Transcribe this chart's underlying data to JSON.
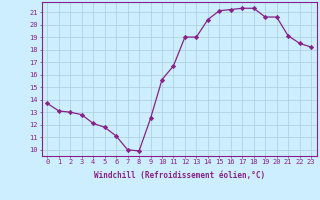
{
  "x": [
    0,
    1,
    2,
    3,
    4,
    5,
    6,
    7,
    8,
    9,
    10,
    11,
    12,
    13,
    14,
    15,
    16,
    17,
    18,
    19,
    20,
    21,
    22,
    23
  ],
  "y": [
    13.7,
    13.1,
    13.0,
    12.8,
    12.1,
    11.8,
    11.1,
    10.0,
    9.9,
    12.5,
    15.6,
    16.7,
    19.0,
    19.0,
    20.4,
    21.1,
    21.2,
    21.3,
    21.3,
    20.6,
    20.6,
    19.1,
    18.5,
    18.2
  ],
  "line_color": "#882288",
  "marker": "D",
  "marker_size": 2.2,
  "bg_color": "#cceeff",
  "grid_color": "#aaccdd",
  "xlabel": "Windchill (Refroidissement éolien,°C)",
  "xlabel_color": "#882288",
  "tick_color": "#882288",
  "ylim": [
    9.5,
    21.8
  ],
  "yticks": [
    10,
    11,
    12,
    13,
    14,
    15,
    16,
    17,
    18,
    19,
    20,
    21
  ],
  "xlim": [
    -0.5,
    23.5
  ],
  "xticks": [
    0,
    1,
    2,
    3,
    4,
    5,
    6,
    7,
    8,
    9,
    10,
    11,
    12,
    13,
    14,
    15,
    16,
    17,
    18,
    19,
    20,
    21,
    22,
    23
  ],
  "tick_fontsize": 5.0,
  "xlabel_fontsize": 5.5
}
